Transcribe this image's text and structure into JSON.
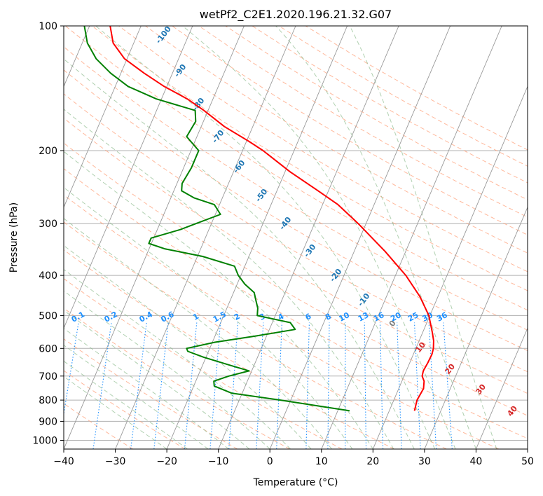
{
  "chart_data": {
    "type": "line",
    "title": "wetPf2_C2E1.2020.196.21.32.G07",
    "xlabel": "Temperature (°C)",
    "ylabel": "Pressure (hPa)",
    "xlim": [
      -40,
      50
    ],
    "ylim": [
      1050,
      100
    ],
    "yscale": "log",
    "skew": 35,
    "x_ticks": [
      -40,
      -30,
      -20,
      -10,
      0,
      10,
      20,
      30,
      40,
      50
    ],
    "y_ticks": [
      100,
      200,
      300,
      400,
      500,
      600,
      700,
      800,
      900,
      1000
    ],
    "grid": true,
    "colors": {
      "temperature": "#ff0000",
      "dewpoint": "#008000",
      "isotherm": "#999999",
      "dry_adiabat": "#ffa07a",
      "moist_adiabat": "#8fbc8f",
      "mixing_ratio": "#1e90ff",
      "isotherm_label": "#1f77b4",
      "temp_label": "#d62728",
      "grid": "#b0b0b0"
    },
    "series": [
      {
        "key": "temperature",
        "points": [
          [
            849,
            24.9
          ],
          [
            800,
            24.5
          ],
          [
            750,
            24.8
          ],
          [
            720,
            24.3
          ],
          [
            700,
            23.5
          ],
          [
            680,
            23.3
          ],
          [
            650,
            23.5
          ],
          [
            620,
            23.6
          ],
          [
            600,
            23.4
          ],
          [
            575,
            22.8
          ],
          [
            550,
            21.9
          ],
          [
            500,
            19.8
          ],
          [
            450,
            16.5
          ],
          [
            400,
            12.0
          ],
          [
            350,
            6.0
          ],
          [
            300,
            -1.5
          ],
          [
            270,
            -7.0
          ],
          [
            250,
            -12.0
          ],
          [
            225,
            -19.0
          ],
          [
            200,
            -26.0
          ],
          [
            190,
            -29.5
          ],
          [
            175,
            -35.5
          ],
          [
            160,
            -40.8
          ],
          [
            150,
            -45.0
          ],
          [
            140,
            -50.5
          ],
          [
            130,
            -55.5
          ],
          [
            120,
            -60.5
          ],
          [
            110,
            -64.0
          ],
          [
            100,
            -66.0
          ]
        ]
      },
      {
        "key": "dewpoint",
        "points": [
          [
            849,
            12.3
          ],
          [
            800,
            -2.0
          ],
          [
            770,
            -12.0
          ],
          [
            740,
            -16.0
          ],
          [
            720,
            -16.5
          ],
          [
            700,
            -14.0
          ],
          [
            680,
            -10.5
          ],
          [
            660,
            -14.5
          ],
          [
            630,
            -20.5
          ],
          [
            610,
            -24.0
          ],
          [
            600,
            -24.5
          ],
          [
            580,
            -19.5
          ],
          [
            560,
            -12.0
          ],
          [
            540,
            -5.0
          ],
          [
            520,
            -6.5
          ],
          [
            500,
            -13.5
          ],
          [
            480,
            -14.0
          ],
          [
            460,
            -15.0
          ],
          [
            440,
            -16.0
          ],
          [
            420,
            -18.5
          ],
          [
            400,
            -20.5
          ],
          [
            380,
            -22.0
          ],
          [
            360,
            -29.0
          ],
          [
            345,
            -37.0
          ],
          [
            335,
            -40.5
          ],
          [
            325,
            -40.5
          ],
          [
            310,
            -35.5
          ],
          [
            300,
            -33.0
          ],
          [
            285,
            -29.0
          ],
          [
            270,
            -31.0
          ],
          [
            260,
            -35.5
          ],
          [
            250,
            -38.5
          ],
          [
            240,
            -39.0
          ],
          [
            220,
            -38.5
          ],
          [
            200,
            -38.5
          ],
          [
            185,
            -42.0
          ],
          [
            170,
            -41.5
          ],
          [
            160,
            -42.5
          ],
          [
            150,
            -51.0
          ],
          [
            140,
            -57.5
          ],
          [
            130,
            -62.0
          ],
          [
            120,
            -66.0
          ],
          [
            110,
            -69.0
          ],
          [
            100,
            -71.0
          ]
        ]
      }
    ],
    "isotherm_labels": [
      "-100",
      "-90",
      "-80",
      "-70",
      "-60",
      "-50",
      "-40",
      "-30",
      "-20",
      "-10",
      "0"
    ],
    "temp_labels": [
      "10",
      "20",
      "30",
      "40"
    ],
    "mixing_ratio_labels": [
      "0.1",
      "0.2",
      "0.4",
      "0.6",
      "1",
      "1.5",
      "2",
      "3",
      "4",
      "6",
      "8",
      "10",
      "13",
      "16",
      "20",
      "25",
      "30",
      "36"
    ],
    "isotherm_label_temps": [
      -100,
      -90,
      -80,
      -70,
      -60,
      -50,
      -40,
      -30,
      -20,
      -10,
      0,
      10,
      20,
      30,
      40
    ],
    "mixing_ratio_values": [
      0.1,
      0.2,
      0.4,
      0.6,
      1,
      1.5,
      2,
      3,
      4,
      6,
      8,
      10,
      13,
      16,
      20,
      25,
      30,
      36
    ]
  }
}
